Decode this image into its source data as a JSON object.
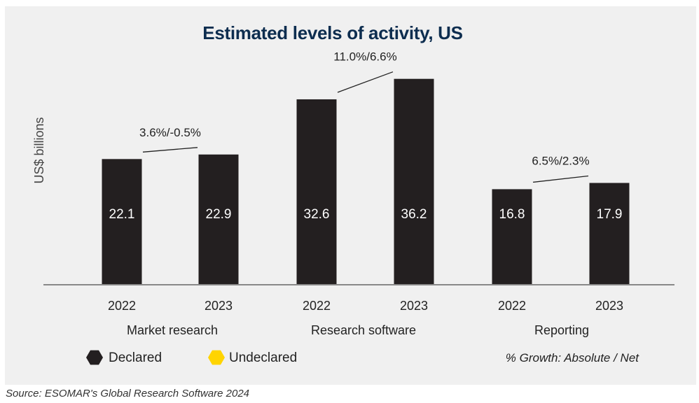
{
  "chart_data": {
    "type": "bar",
    "title": "Estimated levels of activity, US",
    "ylabel": "US$ billions",
    "xlabel": "",
    "ylim": [
      0,
      40
    ],
    "grid": false,
    "groups": [
      {
        "name": "Market research",
        "years": [
          "2022",
          "2023"
        ],
        "values": [
          22.1,
          22.9
        ],
        "value_labels": [
          "22.1",
          "22.9"
        ],
        "growth_label": "3.6%/-0.5%"
      },
      {
        "name": "Research software",
        "years": [
          "2022",
          "2023"
        ],
        "values": [
          32.6,
          36.2
        ],
        "value_labels": [
          "32.6",
          "36.2"
        ],
        "growth_label": "11.0%/6.6%"
      },
      {
        "name": "Reporting",
        "years": [
          "2022",
          "2023"
        ],
        "values": [
          16.8,
          17.9
        ],
        "value_labels": [
          "16.8",
          "17.9"
        ],
        "growth_label": "6.5%/2.3%"
      }
    ],
    "legend": {
      "placement": "bottom-left",
      "items": [
        {
          "label": "Declared",
          "color": "#231f20"
        },
        {
          "label": "Undeclared",
          "color": "#ffd400"
        }
      ],
      "note": "% Growth: Absolute / Net"
    }
  },
  "colors": {
    "bar": "#231f20",
    "bar_label": "#ffffff",
    "title": "#0d2d4f",
    "panel_background": "#f0f0f0",
    "axis": "#888888"
  },
  "source": "Source: ESOMAR's Global Research Software 2024"
}
